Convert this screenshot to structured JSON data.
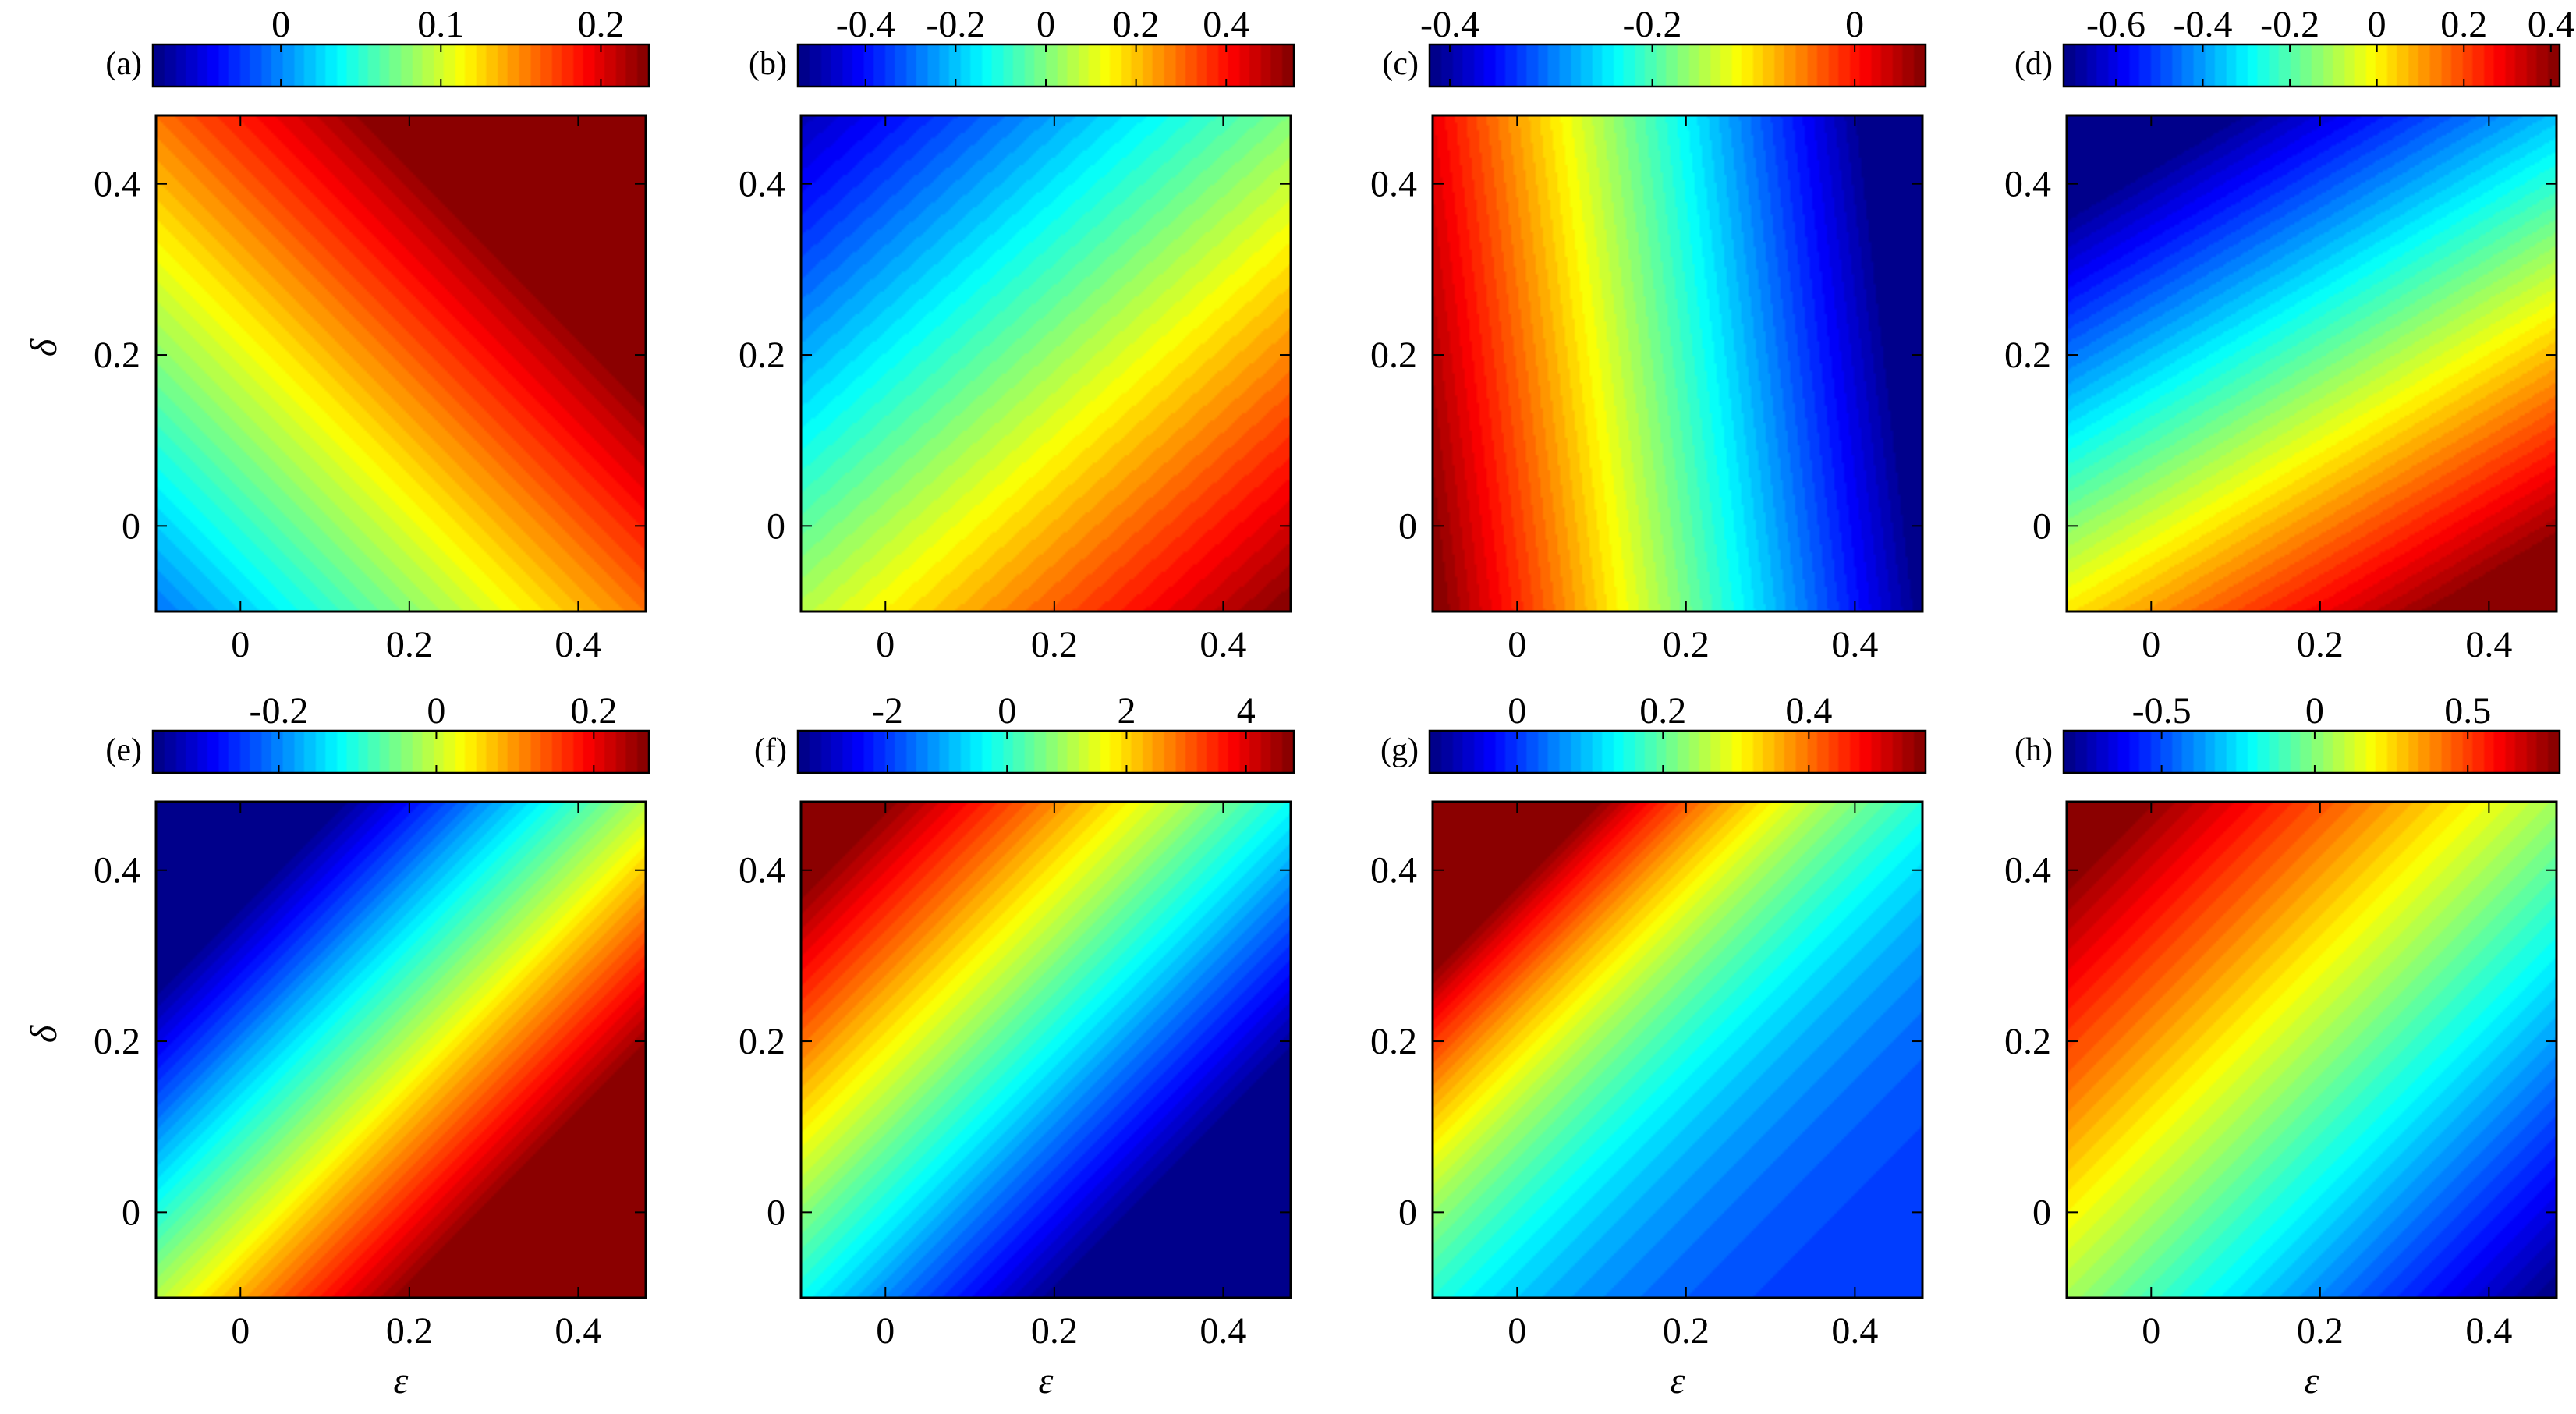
{
  "chart_data": [
    {
      "type": "heatmap",
      "label": "(a)",
      "xlabel": "",
      "ylabel": "δ",
      "xlim": [
        -0.1,
        0.48
      ],
      "ylim": [
        -0.1,
        0.48
      ],
      "xticks": [
        0,
        0.2,
        0.4
      ],
      "yticks": [
        0,
        0.2,
        0.4
      ],
      "xtick_labels": [
        "0",
        "0.2",
        "0.4"
      ],
      "ytick_labels": [
        "0",
        "0.2",
        "0.4"
      ],
      "field": {
        "base": 0.05,
        "a": 0.28,
        "b": 0.28,
        "ex": 1
      },
      "clim": [
        -0.08,
        0.23
      ],
      "colorbar_ticks": [
        0,
        0.1,
        0.2
      ],
      "colorbar_labels": [
        "0",
        "0.1",
        "0.2"
      ]
    },
    {
      "type": "heatmap",
      "label": "(b)",
      "xlabel": "",
      "ylabel": "",
      "xlim": [
        -0.1,
        0.48
      ],
      "ylim": [
        -0.1,
        0.48
      ],
      "xticks": [
        0,
        0.2,
        0.4
      ],
      "yticks": [
        0,
        0.2,
        0.4
      ],
      "xtick_labels": [
        "0",
        "0.2",
        "0.4"
      ],
      "ytick_labels": [
        "0",
        "0.2",
        "0.4"
      ],
      "field": {
        "base": 0.05,
        "a": 0.85,
        "b": -0.95,
        "ex": 1
      },
      "clim": [
        -0.55,
        0.55
      ],
      "colorbar_ticks": [
        -0.4,
        -0.2,
        0,
        0.2,
        0.4
      ],
      "colorbar_labels": [
        "-0.4",
        "-0.2",
        "0",
        "0.2",
        "0.4"
      ]
    },
    {
      "type": "heatmap",
      "label": "(c)",
      "xlabel": "",
      "ylabel": "",
      "xlim": [
        -0.1,
        0.48
      ],
      "ylim": [
        -0.1,
        0.48
      ],
      "xticks": [
        0,
        0.2,
        0.4
      ],
      "yticks": [
        0,
        0.2,
        0.4
      ],
      "xtick_labels": [
        "0",
        "0.2",
        "0.4"
      ],
      "ytick_labels": [
        "0",
        "0.2",
        "0.4"
      ],
      "field": {
        "base": -0.02,
        "a": -0.85,
        "b": -0.1,
        "ex": 1
      },
      "clim": [
        -0.42,
        0.07
      ],
      "colorbar_ticks": [
        -0.4,
        -0.2,
        0
      ],
      "colorbar_labels": [
        "-0.4",
        "-0.2",
        "0"
      ]
    },
    {
      "type": "heatmap",
      "label": "(d)",
      "xlabel": "",
      "ylabel": "",
      "xlim": [
        -0.1,
        0.48
      ],
      "ylim": [
        -0.1,
        0.48
      ],
      "xticks": [
        0,
        0.2,
        0.4
      ],
      "yticks": [
        0,
        0.2,
        0.4
      ],
      "xtick_labels": [
        "0",
        "0.2",
        "0.4"
      ],
      "ytick_labels": [
        "0",
        "0.2",
        "0.4"
      ],
      "field": {
        "base": -0.05,
        "a": 0.9,
        "b": -1.55,
        "ex": 1
      },
      "clim": [
        -0.72,
        0.42
      ],
      "colorbar_ticks": [
        -0.6,
        -0.4,
        -0.2,
        0,
        0.2,
        0.4
      ],
      "colorbar_labels": [
        "-0.6",
        "-0.4",
        "-0.2",
        "0",
        "0.2",
        "0.4"
      ]
    },
    {
      "type": "heatmap",
      "label": "(e)",
      "xlabel": "ε",
      "ylabel": "δ",
      "xlim": [
        -0.1,
        0.48
      ],
      "ylim": [
        -0.1,
        0.48
      ],
      "xticks": [
        0,
        0.2,
        0.4
      ],
      "yticks": [
        0,
        0.2,
        0.4
      ],
      "xtick_labels": [
        "0",
        "0.2",
        "0.4"
      ],
      "ytick_labels": [
        "0",
        "0.2",
        "0.4"
      ],
      "field": {
        "base": -0.01,
        "a": 0.95,
        "b": -0.95,
        "ex": 1
      },
      "clim": [
        -0.36,
        0.27
      ],
      "colorbar_ticks": [
        -0.2,
        0,
        0.2
      ],
      "colorbar_labels": [
        "-0.2",
        "0",
        "0.2"
      ]
    },
    {
      "type": "heatmap",
      "label": "(f)",
      "xlabel": "ε",
      "ylabel": "",
      "xlim": [
        -0.1,
        0.48
      ],
      "ylim": [
        -0.1,
        0.48
      ],
      "xticks": [
        0,
        0.2,
        0.4
      ],
      "yticks": [
        0,
        0.2,
        0.4
      ],
      "xtick_labels": [
        "0",
        "0.2",
        "0.4"
      ],
      "ytick_labels": [
        "0",
        "0.2",
        "0.4"
      ],
      "field": {
        "base": -0.3,
        "a": -10.5,
        "b": 10.5,
        "ex": 1
      },
      "clim": [
        -3.5,
        4.8
      ],
      "colorbar_ticks": [
        -2,
        0,
        2,
        4
      ],
      "colorbar_labels": [
        "-2",
        "0",
        "2",
        "4"
      ]
    },
    {
      "type": "heatmap",
      "label": "(g)",
      "xlabel": "ε",
      "ylabel": "",
      "xlim": [
        -0.1,
        0.48
      ],
      "ylim": [
        -0.1,
        0.48
      ],
      "xticks": [
        0,
        0.2,
        0.4
      ],
      "yticks": [
        0,
        0.2,
        0.4
      ],
      "xtick_labels": [
        "0",
        "0.2",
        "0.4"
      ],
      "ytick_labels": [
        "0",
        "0.2",
        "0.4"
      ],
      "field": {
        "base": 0.0,
        "a": -0.55,
        "b": 0.55,
        "ex": 2.5
      },
      "clim": [
        -0.12,
        0.56
      ],
      "colorbar_ticks": [
        0,
        0.2,
        0.4
      ],
      "colorbar_labels": [
        "0",
        "0.2",
        "0.4"
      ]
    },
    {
      "type": "heatmap",
      "label": "(h)",
      "xlabel": "ε",
      "ylabel": "",
      "xlim": [
        -0.1,
        0.48
      ],
      "ylim": [
        -0.1,
        0.48
      ],
      "xticks": [
        0,
        0.2,
        0.4
      ],
      "yticks": [
        0,
        0.2,
        0.4
      ],
      "xtick_labels": [
        "0",
        "0.2",
        "0.4"
      ],
      "ytick_labels": [
        "0",
        "0.2",
        "0.4"
      ],
      "field": {
        "base": 0.05,
        "a": -1.5,
        "b": 1.5,
        "ex": 1
      },
      "clim": [
        -0.82,
        0.8
      ],
      "colorbar_ticks": [
        -0.5,
        0,
        0.5
      ],
      "colorbar_labels": [
        "-0.5",
        "0",
        "0.5"
      ]
    }
  ]
}
